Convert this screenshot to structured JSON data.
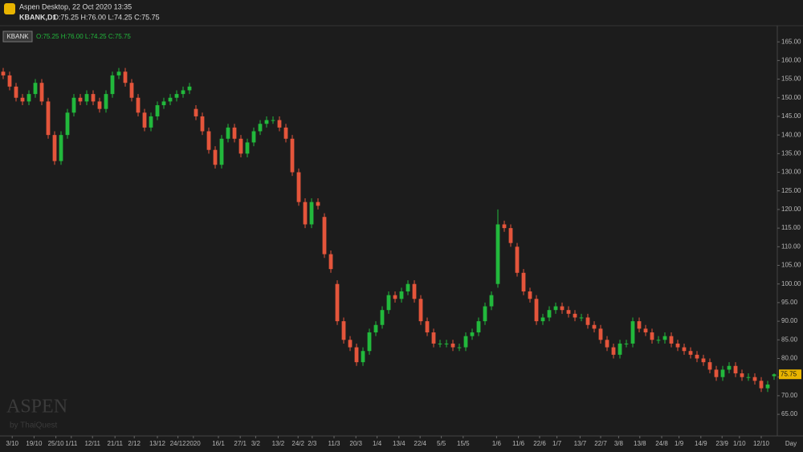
{
  "header": {
    "title": "Aspen Desktop, 22 Oct 2020 13:35",
    "symbol_line": "KBANK,D1",
    "ohlc_line": "O:75.25 H:76.00 L:74.25 C:75.75",
    "symbol_tag": "KBANK",
    "tag_ohlc": "O:75.25 H:76.00 L:74.25 C:75.75"
  },
  "watermark": {
    "brand": "ASPEN",
    "by": "by ThaiQuest"
  },
  "chart_data": {
    "type": "candlestick",
    "x_unit": "Day",
    "up_color": "#22b83c",
    "down_color": "#e4553b",
    "grid": false,
    "last_price": 75.75,
    "xlim": [
      -0.5,
      120.5
    ],
    "ylim": [
      59.2,
      168.7
    ],
    "yticks": [
      {
        "value": 65,
        "label": "65.00"
      },
      {
        "value": 70,
        "label": "70.00"
      },
      {
        "value": 75,
        "label": "75.00"
      },
      {
        "value": 80,
        "label": "80.00"
      },
      {
        "value": 85,
        "label": "85.00"
      },
      {
        "value": 90,
        "label": "90.00"
      },
      {
        "value": 95,
        "label": "95.00"
      },
      {
        "value": 100,
        "label": "100.00"
      },
      {
        "value": 105,
        "label": "105.00"
      },
      {
        "value": 110,
        "label": "110.00"
      },
      {
        "value": 115,
        "label": "115.00"
      },
      {
        "value": 120,
        "label": "120.00"
      },
      {
        "value": 125,
        "label": "125.00"
      },
      {
        "value": 130,
        "label": "130.00"
      },
      {
        "value": 135,
        "label": "135.00"
      },
      {
        "value": 140,
        "label": "140.00"
      },
      {
        "value": 145,
        "label": "145.00"
      },
      {
        "value": 150,
        "label": "150.00"
      },
      {
        "value": 155,
        "label": "155.00"
      },
      {
        "value": 160,
        "label": "160.00"
      },
      {
        "value": 165,
        "label": "165.00"
      }
    ],
    "xticks": [
      {
        "value": 1.4,
        "label": "3/10"
      },
      {
        "value": 4.8,
        "label": "19/10"
      },
      {
        "value": 8.2,
        "label": "25/10"
      },
      {
        "value": 10.6,
        "label": "1/11"
      },
      {
        "value": 13.9,
        "label": "12/11"
      },
      {
        "value": 17.4,
        "label": "21/11"
      },
      {
        "value": 20.4,
        "label": "2/12"
      },
      {
        "value": 24,
        "label": "13/12"
      },
      {
        "value": 27.2,
        "label": "24/12"
      },
      {
        "value": 29.6,
        "label": "2020"
      },
      {
        "value": 33.5,
        "label": "16/1"
      },
      {
        "value": 36.9,
        "label": "27/1"
      },
      {
        "value": 39.3,
        "label": "3/2"
      },
      {
        "value": 42.8,
        "label": "13/2"
      },
      {
        "value": 45.9,
        "label": "24/2"
      },
      {
        "value": 48.1,
        "label": "2/3"
      },
      {
        "value": 51.5,
        "label": "11/3"
      },
      {
        "value": 54.9,
        "label": "20/3"
      },
      {
        "value": 58.2,
        "label": "1/4"
      },
      {
        "value": 61.6,
        "label": "13/4"
      },
      {
        "value": 64.9,
        "label": "22/4"
      },
      {
        "value": 68.2,
        "label": "5/5"
      },
      {
        "value": 71.6,
        "label": "15/5"
      },
      {
        "value": 76.8,
        "label": "1/6"
      },
      {
        "value": 80.2,
        "label": "11/6"
      },
      {
        "value": 83.5,
        "label": "22/6"
      },
      {
        "value": 86.2,
        "label": "1/7"
      },
      {
        "value": 89.8,
        "label": "13/7"
      },
      {
        "value": 93,
        "label": "22/7"
      },
      {
        "value": 95.8,
        "label": "3/8"
      },
      {
        "value": 99.1,
        "label": "13/8"
      },
      {
        "value": 102.5,
        "label": "24/8"
      },
      {
        "value": 105.2,
        "label": "1/9"
      },
      {
        "value": 108.6,
        "label": "14/9"
      },
      {
        "value": 111.9,
        "label": "23/9"
      },
      {
        "value": 114.6,
        "label": "1/10"
      },
      {
        "value": 118,
        "label": "12/10"
      }
    ],
    "open": [
      157,
      156,
      153,
      150,
      149,
      151,
      154,
      149,
      140,
      133,
      140,
      146,
      150,
      149,
      151,
      149,
      147,
      151,
      156,
      157,
      154,
      150,
      146,
      142,
      145,
      148,
      149,
      150,
      151,
      152,
      147,
      145,
      141,
      136,
      132,
      139,
      142,
      139,
      135,
      138,
      141,
      143,
      144,
      144,
      142,
      139,
      130,
      122,
      116,
      122,
      118,
      108,
      100,
      90,
      85,
      83,
      79,
      82,
      87,
      89,
      93,
      97,
      96,
      98,
      100,
      96,
      90,
      87,
      84,
      84,
      84,
      83,
      83,
      86,
      87,
      90,
      94,
      100,
      116,
      115,
      110,
      103,
      98,
      96,
      90,
      91,
      93,
      94,
      93,
      92,
      91,
      91,
      89,
      88,
      85,
      83,
      81,
      84,
      84,
      90,
      88,
      87,
      85,
      85,
      86,
      84,
      83,
      82,
      81,
      80,
      79,
      77,
      75,
      77,
      78,
      76,
      75,
      75,
      74,
      72,
      75.25
    ],
    "high": [
      158,
      157,
      154,
      151,
      152,
      155,
      155,
      150,
      141,
      141,
      147,
      151,
      151,
      152,
      152,
      150,
      152,
      157,
      158,
      158,
      155,
      151,
      147,
      146,
      149,
      150,
      151,
      152,
      153,
      154,
      148,
      146,
      142,
      137,
      140,
      143,
      143,
      140,
      139,
      142,
      144,
      145,
      145,
      145,
      143,
      140,
      131,
      123,
      123,
      123,
      119,
      109,
      101,
      91,
      86,
      84,
      83,
      88,
      90,
      94,
      98,
      98,
      99,
      101,
      101,
      97,
      91,
      88,
      85,
      85,
      85,
      84,
      87,
      88,
      91,
      95,
      98,
      120,
      117,
      116,
      111,
      104,
      99,
      97,
      92,
      94,
      95,
      95,
      94,
      93,
      92,
      92,
      90,
      89,
      86,
      84,
      85,
      85,
      91,
      91,
      89,
      88,
      86,
      87,
      87,
      85,
      84,
      83,
      82,
      81,
      80,
      78,
      78,
      79,
      79,
      77,
      76,
      76,
      75,
      74,
      76
    ],
    "low": [
      155,
      152,
      149,
      148,
      148,
      150,
      148,
      139,
      132,
      132,
      139,
      145,
      148,
      148,
      148,
      146,
      146,
      150,
      155,
      153,
      149,
      145,
      141,
      141,
      144,
      147,
      148,
      149,
      150,
      151,
      144,
      140,
      135,
      131,
      131,
      138,
      138,
      134,
      134,
      137,
      140,
      142,
      143,
      141,
      138,
      129,
      121,
      115,
      115,
      120,
      107,
      103,
      89,
      84,
      82,
      78,
      78,
      81,
      86,
      88,
      92,
      95,
      95,
      97,
      95,
      89,
      86,
      83,
      83,
      83,
      82,
      82,
      82,
      85,
      86,
      89,
      93,
      99,
      114,
      110,
      102,
      97,
      95,
      89,
      89,
      90,
      92,
      92,
      91,
      90,
      90,
      88,
      87,
      84,
      82,
      80,
      80,
      83,
      83,
      87,
      86,
      84,
      84,
      84,
      83,
      82,
      81,
      80,
      79,
      78,
      76,
      74,
      74,
      76,
      75,
      74,
      74,
      73,
      71,
      71,
      74.25
    ],
    "close": [
      156,
      153,
      150,
      149,
      151,
      154,
      149,
      140,
      133,
      140,
      146,
      150,
      149,
      151,
      149,
      147,
      151,
      156,
      157,
      154,
      150,
      146,
      142,
      145,
      148,
      149,
      150,
      151,
      152,
      153,
      145,
      141,
      136,
      132,
      139,
      142,
      139,
      135,
      138,
      141,
      143,
      144,
      144,
      142,
      139,
      130,
      122,
      116,
      122,
      121,
      108,
      104,
      90,
      85,
      83,
      79,
      82,
      87,
      89,
      93,
      97,
      96,
      98,
      100,
      96,
      90,
      87,
      84,
      84,
      84,
      83,
      83,
      86,
      87,
      90,
      94,
      97,
      116,
      115,
      111,
      103,
      98,
      96,
      90,
      91,
      93,
      94,
      93,
      92,
      91,
      91,
      89,
      88,
      85,
      83,
      81,
      84,
      84,
      90,
      88,
      87,
      85,
      85,
      86,
      84,
      83,
      82,
      81,
      80,
      79,
      77,
      75,
      77,
      78,
      76,
      75,
      75,
      74,
      72,
      73,
      75.75
    ]
  }
}
